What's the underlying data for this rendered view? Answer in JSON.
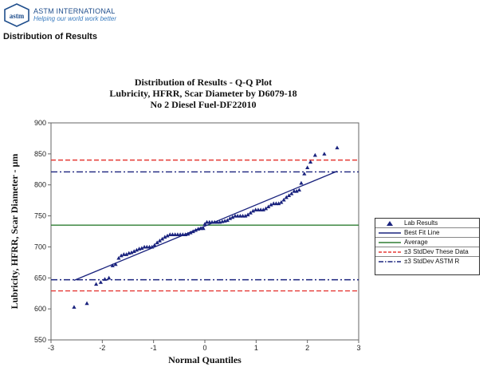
{
  "header": {
    "org_name": "ASTM INTERNATIONAL",
    "tagline": "Helping our world work better",
    "section_title": "Distribution of Results"
  },
  "chart_data": {
    "type": "scatter",
    "title": "Distribution of Results - Q-Q Plot",
    "subtitle_lines": [
      "Lubricity, HFRR, Scar Diameter by D6079-18",
      "No 2 Diesel Fuel-DF22010"
    ],
    "xlabel": "Normal Quantiles",
    "ylabel": "Lubricity, HFRR, Scar Diameter - µm",
    "xlim": [
      -3,
      3
    ],
    "ylim": [
      550,
      900
    ],
    "xticks": [
      -3,
      -2,
      -1,
      0,
      1,
      2,
      3
    ],
    "yticks": [
      550,
      600,
      650,
      700,
      750,
      800,
      850,
      900
    ],
    "legend_position": "right",
    "series": [
      {
        "name": "Lab Results",
        "color": "#1a237e",
        "points": [
          [
            -2.55,
            603
          ],
          [
            -2.3,
            609
          ],
          [
            -2.12,
            640
          ],
          [
            -2.03,
            643
          ],
          [
            -1.95,
            648
          ],
          [
            -1.87,
            650
          ],
          [
            -1.8,
            670
          ],
          [
            -1.74,
            672
          ],
          [
            -1.68,
            682
          ],
          [
            -1.63,
            686
          ],
          [
            -1.58,
            688
          ],
          [
            -1.53,
            688
          ],
          [
            -1.48,
            690
          ],
          [
            -1.43,
            691
          ],
          [
            -1.38,
            693
          ],
          [
            -1.33,
            695
          ],
          [
            -1.28,
            697
          ],
          [
            -1.23,
            698
          ],
          [
            -1.18,
            700
          ],
          [
            -1.13,
            700
          ],
          [
            -1.08,
            700
          ],
          [
            -1.03,
            700
          ],
          [
            -0.98,
            703
          ],
          [
            -0.93,
            707
          ],
          [
            -0.88,
            710
          ],
          [
            -0.83,
            713
          ],
          [
            -0.78,
            716
          ],
          [
            -0.73,
            718
          ],
          [
            -0.68,
            720
          ],
          [
            -0.63,
            720
          ],
          [
            -0.58,
            720
          ],
          [
            -0.53,
            720
          ],
          [
            -0.48,
            720
          ],
          [
            -0.43,
            720
          ],
          [
            -0.38,
            720
          ],
          [
            -0.33,
            721
          ],
          [
            -0.28,
            723
          ],
          [
            -0.23,
            725
          ],
          [
            -0.18,
            727
          ],
          [
            -0.13,
            729
          ],
          [
            -0.08,
            730
          ],
          [
            -0.03,
            730
          ],
          [
            0.0,
            737
          ],
          [
            0.04,
            740
          ],
          [
            0.09,
            740
          ],
          [
            0.14,
            740
          ],
          [
            0.19,
            740
          ],
          [
            0.24,
            740
          ],
          [
            0.29,
            740
          ],
          [
            0.34,
            741
          ],
          [
            0.39,
            742
          ],
          [
            0.44,
            743
          ],
          [
            0.49,
            746
          ],
          [
            0.54,
            748
          ],
          [
            0.59,
            750
          ],
          [
            0.64,
            750
          ],
          [
            0.69,
            750
          ],
          [
            0.74,
            750
          ],
          [
            0.79,
            750
          ],
          [
            0.84,
            752
          ],
          [
            0.89,
            755
          ],
          [
            0.94,
            758
          ],
          [
            0.99,
            760
          ],
          [
            1.04,
            760
          ],
          [
            1.09,
            760
          ],
          [
            1.14,
            760
          ],
          [
            1.19,
            762
          ],
          [
            1.24,
            765
          ],
          [
            1.29,
            768
          ],
          [
            1.34,
            770
          ],
          [
            1.39,
            770
          ],
          [
            1.44,
            770
          ],
          [
            1.49,
            772
          ],
          [
            1.54,
            776
          ],
          [
            1.59,
            780
          ],
          [
            1.64,
            783
          ],
          [
            1.69,
            786
          ],
          [
            1.74,
            790
          ],
          [
            1.79,
            790
          ],
          [
            1.84,
            792
          ],
          [
            1.88,
            803
          ],
          [
            1.94,
            818
          ],
          [
            2.0,
            828
          ],
          [
            2.06,
            837
          ],
          [
            2.15,
            848
          ],
          [
            2.33,
            850
          ],
          [
            2.58,
            860
          ]
        ]
      }
    ],
    "best_fit": {
      "name": "Best Fit Line",
      "x": [
        -2.55,
        2.58
      ],
      "y": [
        646,
        822
      ],
      "color": "#1a237e"
    },
    "reference_lines": [
      {
        "name": "Average",
        "value": 735,
        "color": "#2e7d32",
        "style": "solid"
      },
      {
        "name": "±3 StdDev These Data",
        "value": 840,
        "color": "#e53935",
        "style": "dashed"
      },
      {
        "name": "±3 StdDev These Data",
        "value": 629,
        "color": "#e53935",
        "style": "dashed",
        "legend": false
      },
      {
        "name": "±3 StdDev ASTM R",
        "value": 821,
        "color": "#1a237e",
        "style": "dashdot"
      },
      {
        "name": "±3 StdDev ASTM R",
        "value": 647,
        "color": "#1a237e",
        "style": "dashdot",
        "legend": false
      }
    ],
    "legend": [
      {
        "label": "Lab Results",
        "marker": "triangle",
        "color": "#1a237e"
      },
      {
        "label": "Best Fit Line",
        "marker": "solid",
        "color": "#1a237e"
      },
      {
        "label": "Average",
        "marker": "solid",
        "color": "#2e7d32"
      },
      {
        "label": "±3 StdDev These Data",
        "marker": "dashed",
        "color": "#e53935"
      },
      {
        "label": "±3 StdDev ASTM R",
        "marker": "dashdot",
        "color": "#1a237e"
      }
    ]
  }
}
